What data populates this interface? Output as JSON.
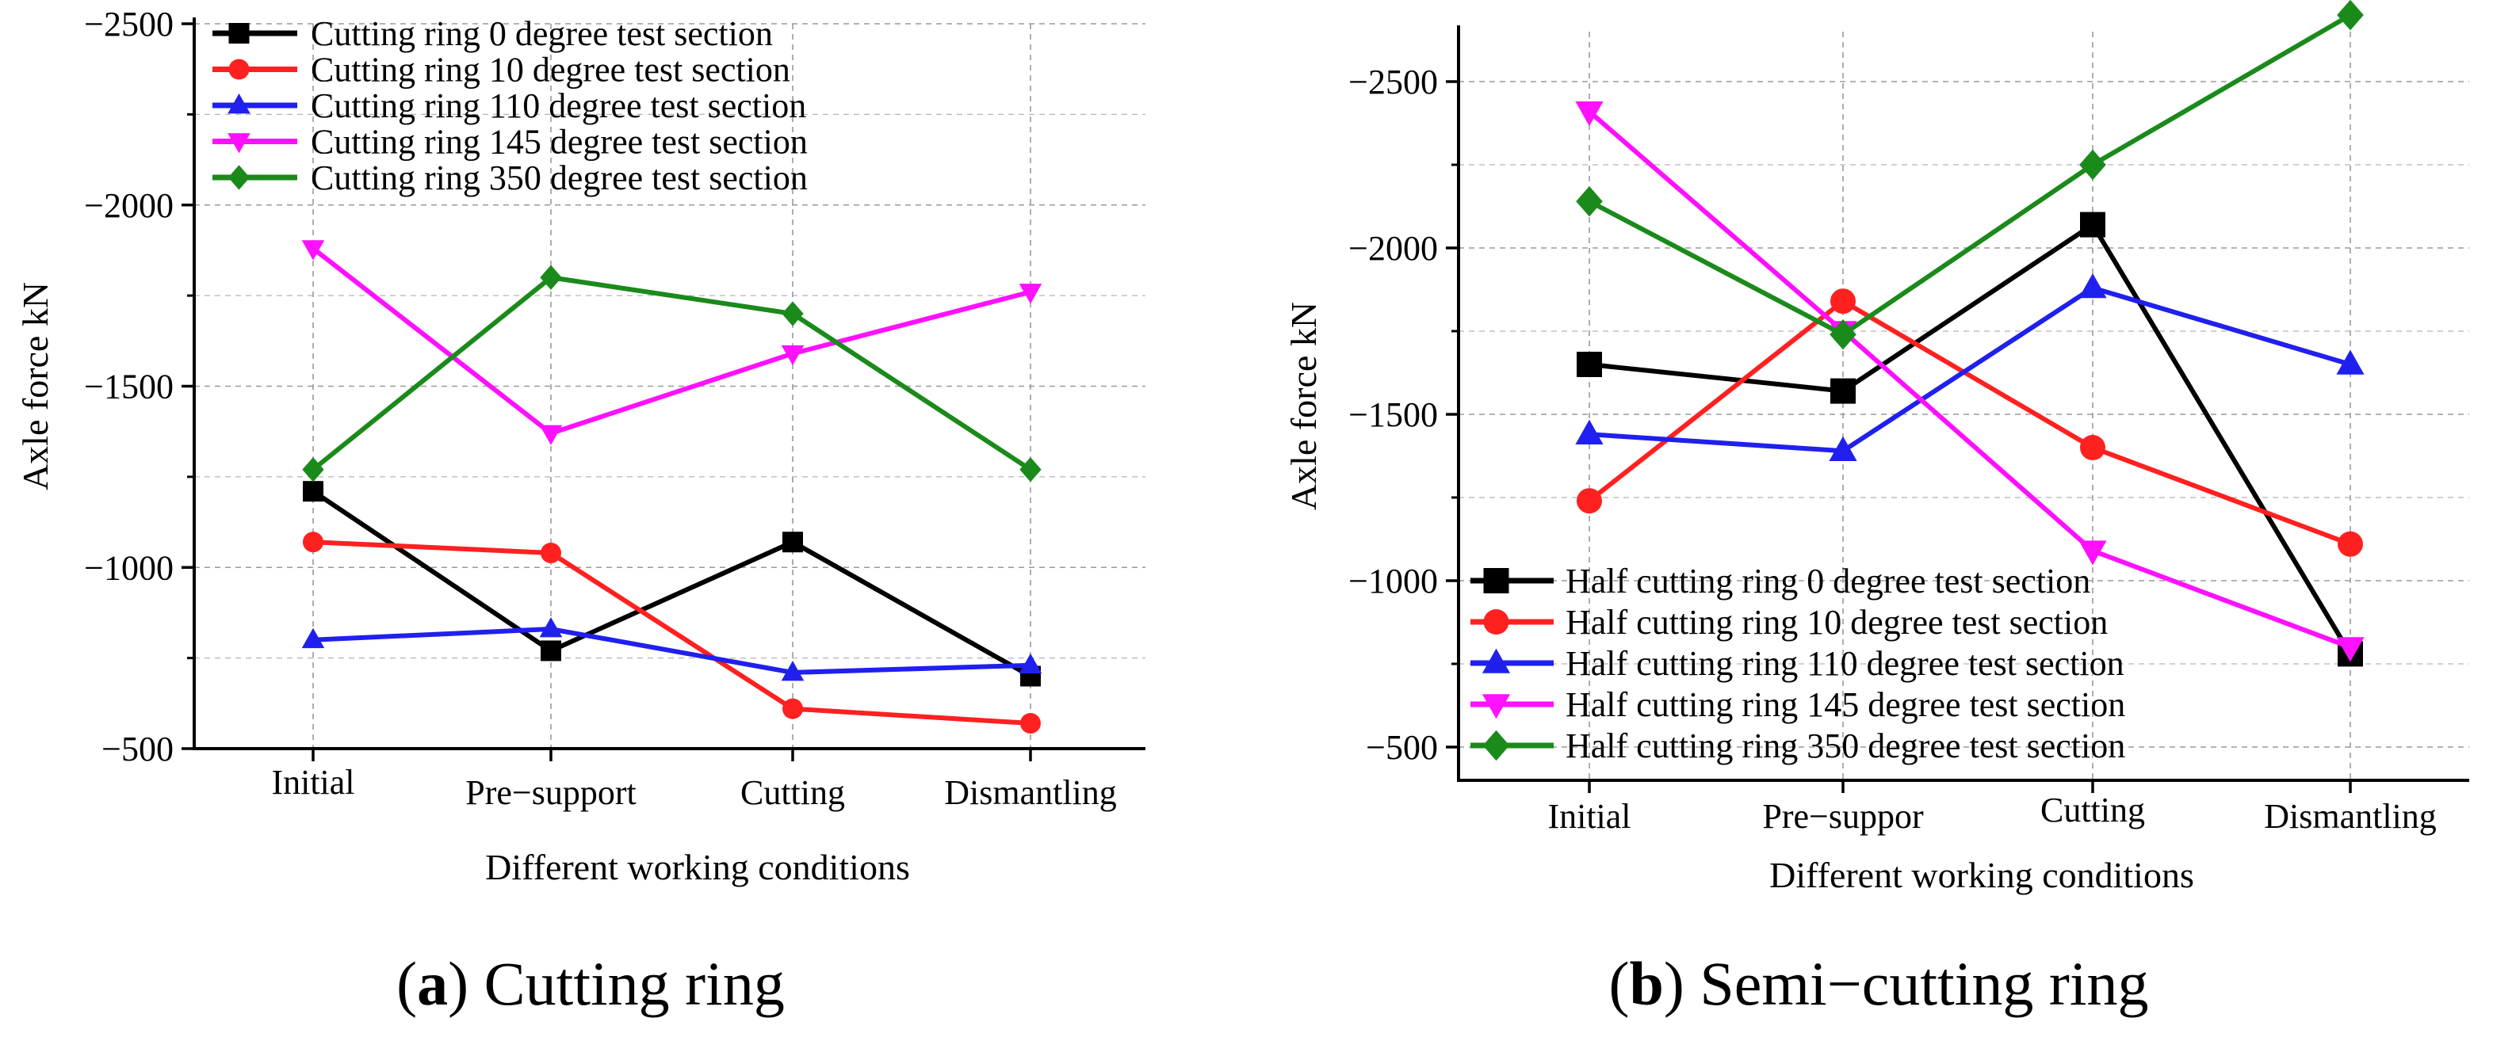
{
  "chart_data": [
    {
      "type": "line",
      "id": "a",
      "caption_letter": "a",
      "caption_text": "Cutting ring",
      "xlabel": "Different working conditions",
      "ylabel": "Axle force kN",
      "categories": [
        "Initial",
        "Pre−support",
        "Cutting",
        "Dismantling"
      ],
      "ylim": [
        -500,
        -2500
      ],
      "yticks": [
        {
          "value": -2500,
          "label": "−2500"
        },
        {
          "value": -2000,
          "label": "−2000"
        },
        {
          "value": -1500,
          "label": "−1500"
        },
        {
          "value": -1000,
          "label": "−1000"
        },
        {
          "value": -500,
          "label": "−500"
        }
      ],
      "grid": true,
      "legend_position": "top-left",
      "series": [
        {
          "name": "Cutting ring 0 degree test section",
          "color": "#000000",
          "marker": "square",
          "values": [
            -1210,
            -770,
            -1070,
            -700
          ]
        },
        {
          "name": "Cutting ring 10 degree test section",
          "color": "#ff2020",
          "marker": "circle",
          "values": [
            -1070,
            -1040,
            -610,
            -570
          ]
        },
        {
          "name": "Cutting ring 110 degree test section",
          "color": "#2020ee",
          "marker": "triangle-up",
          "values": [
            -800,
            -830,
            -710,
            -730
          ]
        },
        {
          "name": "Cutting ring 145 degree test section",
          "color": "#ff10ff",
          "marker": "triangle-down",
          "values": [
            -1880,
            -1370,
            -1590,
            -1760
          ]
        },
        {
          "name": "Cutting ring 350 degree test section",
          "color": "#1a8a1a",
          "marker": "diamond",
          "values": [
            -1270,
            -1800,
            -1700,
            -1270
          ]
        }
      ]
    },
    {
      "type": "line",
      "id": "b",
      "caption_letter": "b",
      "caption_text": "Semi−cutting ring",
      "xlabel": "Different working conditions",
      "ylabel": "Axle force kN",
      "categories": [
        "Initial",
        "Pre−suppor",
        "Cutting",
        "Dismantling"
      ],
      "ylim": [
        -400,
        -2650
      ],
      "yticks": [
        {
          "value": -2500,
          "label": "−2500"
        },
        {
          "value": -2000,
          "label": "−2000"
        },
        {
          "value": -1500,
          "label": "−1500"
        },
        {
          "value": -1000,
          "label": "−1000"
        },
        {
          "value": -500,
          "label": "−500"
        }
      ],
      "grid": true,
      "legend_position": "bottom-left",
      "series": [
        {
          "name": "Half cutting ring 0 degree test section",
          "color": "#000000",
          "marker": "square",
          "values": [
            -1650,
            -1570,
            -2070,
            -780
          ]
        },
        {
          "name": "Half cutting ring 10 degree test section",
          "color": "#ff2020",
          "marker": "circle",
          "values": [
            -1240,
            -1840,
            -1400,
            -1110
          ]
        },
        {
          "name": "Half cutting ring 110 degree test section",
          "color": "#2020ee",
          "marker": "triangle-up",
          "values": [
            -1440,
            -1390,
            -1880,
            -1650
          ]
        },
        {
          "name": "Half cutting ring 145 degree test section",
          "color": "#ff10ff",
          "marker": "triangle-down",
          "values": [
            -2410,
            -1750,
            -1090,
            -800
          ]
        },
        {
          "name": "Half cutting ring 350 degree test section",
          "color": "#1a8a1a",
          "marker": "diamond",
          "values": [
            -2140,
            -1740,
            -2250,
            -2700
          ]
        }
      ]
    }
  ]
}
